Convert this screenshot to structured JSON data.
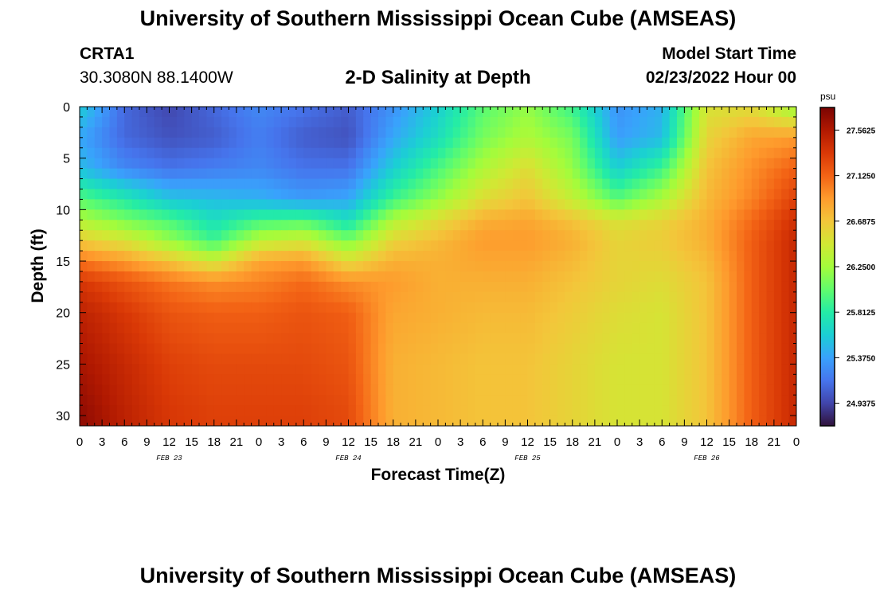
{
  "header": {
    "title": "University of Southern Mississippi Ocean Cube (AMSEAS)",
    "station": "CRTA1",
    "coords": "30.3080N  88.1400W",
    "subtitle": "2-D Salinity at Depth",
    "model_label": "Model Start Time",
    "model_time": "02/23/2022 Hour 00"
  },
  "footer": {
    "title": "University of Southern Mississippi Ocean Cube (AMSEAS)"
  },
  "colors": {
    "ramp": [
      "#30123b",
      "#4145ab",
      "#4675ed",
      "#39a2fc",
      "#1bcfd4",
      "#24eca6",
      "#61fc6c",
      "#a4fc3b",
      "#d1e834",
      "#f3c63a",
      "#fe9b2d",
      "#f36315",
      "#d93806",
      "#b11901",
      "#7a0403"
    ],
    "frame": "#000000"
  },
  "chart_data": {
    "type": "heatmap",
    "title": "2-D Salinity at Depth",
    "xlabel": "Forecast Time(Z)",
    "ylabel": "Depth (ft)",
    "x_hours": [
      0,
      96
    ],
    "ylim": [
      0,
      31
    ],
    "y_ticks": [
      "0",
      "5",
      "10",
      "15",
      "20",
      "25",
      "30"
    ],
    "y_tick_values": [
      0,
      5,
      10,
      15,
      20,
      25,
      30
    ],
    "x_tick_labels": [
      "0",
      "3",
      "6",
      "9",
      "12",
      "15",
      "18",
      "21",
      "0",
      "3",
      "6",
      "9",
      "12",
      "15",
      "18",
      "21",
      "0",
      "3",
      "6",
      "9",
      "12",
      "15",
      "18",
      "21",
      "0",
      "3",
      "6",
      "9",
      "12",
      "15",
      "18",
      "21",
      "0"
    ],
    "x_tick_hours": [
      0,
      3,
      6,
      9,
      12,
      15,
      18,
      21,
      24,
      27,
      30,
      33,
      36,
      39,
      42,
      45,
      48,
      51,
      54,
      57,
      60,
      63,
      66,
      69,
      72,
      75,
      78,
      81,
      84,
      87,
      90,
      93,
      96
    ],
    "day_labels": [
      "FEB 23",
      "FEB 24",
      "FEB 25",
      "FEB 26"
    ],
    "day_label_hours": [
      12,
      36,
      60,
      84
    ],
    "colorbar": {
      "unit": "psu",
      "range": [
        24.72,
        27.78
      ],
      "tick_labels": [
        "27.5625",
        "27.1250",
        "26.6875",
        "26.2500",
        "25.8125",
        "25.3750",
        "24.9375"
      ],
      "tick_values": [
        27.5625,
        27.125,
        26.6875,
        26.25,
        25.8125,
        25.375,
        24.9375
      ]
    },
    "field_description_note": "Approximate salinity (psu) values sampled from the plotted field",
    "sample_depths_ft": [
      0,
      3,
      6,
      9,
      11,
      13,
      15,
      17,
      20,
      25,
      30
    ],
    "sample_hours": [
      0,
      6,
      12,
      18,
      24,
      30,
      36,
      42,
      48,
      54,
      60,
      66,
      72,
      78,
      84,
      90,
      96
    ],
    "sample_values": [
      [
        25.6,
        25.1,
        24.95,
        25.1,
        25.25,
        25.15,
        25.05,
        25.3,
        25.6,
        26.0,
        26.2,
        25.9,
        25.3,
        25.45,
        26.5,
        26.55,
        26.2
      ],
      [
        25.4,
        25.1,
        25.0,
        25.05,
        25.2,
        25.05,
        25.0,
        25.4,
        25.7,
        26.1,
        26.3,
        26.1,
        25.35,
        25.5,
        26.6,
        26.85,
        26.9
      ],
      [
        25.5,
        25.25,
        25.15,
        25.2,
        25.25,
        25.15,
        25.15,
        25.6,
        25.95,
        26.3,
        26.55,
        26.2,
        25.6,
        25.9,
        26.7,
        26.95,
        27.15
      ],
      [
        26.0,
        25.8,
        25.55,
        25.5,
        25.45,
        25.35,
        25.4,
        25.9,
        26.2,
        26.55,
        26.7,
        26.4,
        26.0,
        26.3,
        26.75,
        27.0,
        27.3
      ],
      [
        26.3,
        26.1,
        25.95,
        25.7,
        25.9,
        25.95,
        25.7,
        26.3,
        26.55,
        26.8,
        26.85,
        26.7,
        26.5,
        26.6,
        26.8,
        27.1,
        27.4
      ],
      [
        26.65,
        26.5,
        26.2,
        25.9,
        26.35,
        26.45,
        26.1,
        26.6,
        26.75,
        26.9,
        26.9,
        26.8,
        26.6,
        26.65,
        26.8,
        27.15,
        27.45
      ],
      [
        27.05,
        26.9,
        26.7,
        26.45,
        26.85,
        26.9,
        26.55,
        26.8,
        26.8,
        26.85,
        26.85,
        26.75,
        26.6,
        26.6,
        26.75,
        27.15,
        27.45
      ],
      [
        27.35,
        27.2,
        27.05,
        26.95,
        27.0,
        27.1,
        26.95,
        26.9,
        26.8,
        26.8,
        26.8,
        26.7,
        26.6,
        26.55,
        26.7,
        27.15,
        27.45
      ],
      [
        27.5,
        27.35,
        27.2,
        27.15,
        27.15,
        27.2,
        27.15,
        26.85,
        26.8,
        26.75,
        26.75,
        26.65,
        26.55,
        26.5,
        26.7,
        27.15,
        27.45
      ],
      [
        27.6,
        27.45,
        27.3,
        27.25,
        27.25,
        27.25,
        27.2,
        26.8,
        26.75,
        26.7,
        26.7,
        26.6,
        26.5,
        26.5,
        26.7,
        27.15,
        27.45
      ],
      [
        27.7,
        27.5,
        27.35,
        27.3,
        27.3,
        27.3,
        27.25,
        26.8,
        26.75,
        26.7,
        26.7,
        26.6,
        26.5,
        26.5,
        26.7,
        27.15,
        27.45
      ]
    ]
  }
}
